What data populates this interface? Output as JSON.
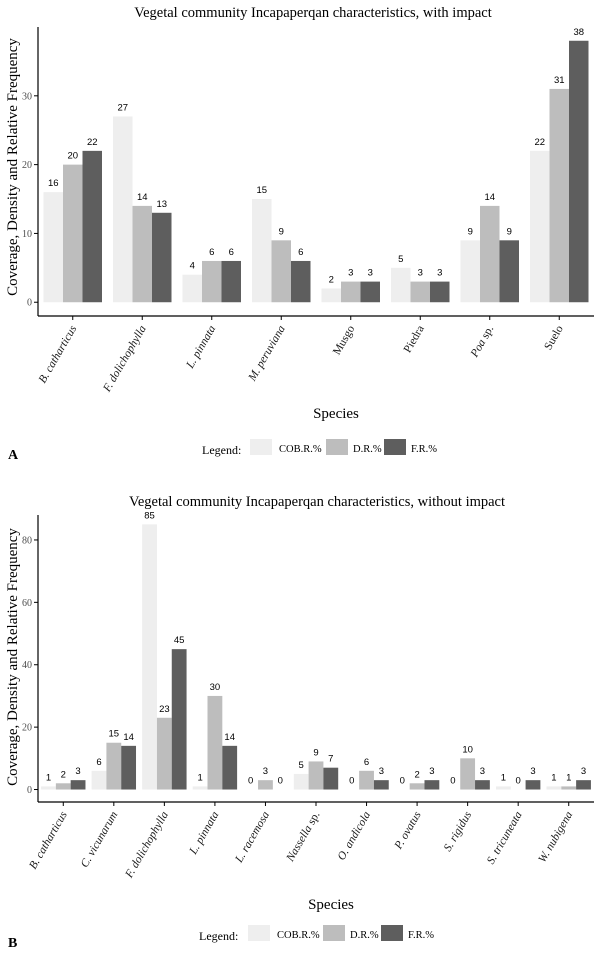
{
  "colors": {
    "cob": "#eeeeee",
    "dr": "#bdbdbd",
    "fr": "#5e5e5e",
    "axis": "#000000"
  },
  "chart_data": [
    {
      "type": "bar",
      "panel": "A",
      "title": "Vegetal community Incapaperqan characteristics, with impact",
      "xlabel": "Species",
      "ylabel": "Coverage, Density and Relative Frequency",
      "ylim": [
        -2,
        40
      ],
      "yticks": [
        0,
        10,
        20,
        30
      ],
      "categories": [
        {
          "name": "B. catharticus",
          "italic": true
        },
        {
          "name": "F. dolichophylla",
          "italic": true
        },
        {
          "name": "L. pinnata",
          "italic": true
        },
        {
          "name": "M. peruviana",
          "italic": true
        },
        {
          "name": "Musgo",
          "italic": false
        },
        {
          "name": "Piedra",
          "italic": false
        },
        {
          "name": "Poa",
          "italic": true,
          "suffix": " sp."
        },
        {
          "name": "Suelo",
          "italic": false
        }
      ],
      "series": [
        {
          "name": "COB.R.%",
          "color_key": "cob",
          "values": [
            16,
            27,
            4,
            15,
            2,
            5,
            9,
            22
          ]
        },
        {
          "name": "D.R.%",
          "color_key": "dr",
          "values": [
            20,
            14,
            6,
            9,
            3,
            3,
            14,
            31
          ]
        },
        {
          "name": "F.R.%",
          "color_key": "fr",
          "values": [
            22,
            13,
            6,
            6,
            3,
            3,
            9,
            38
          ]
        }
      ],
      "legend": {
        "title": "Legend:",
        "position": "bottom"
      }
    },
    {
      "type": "bar",
      "panel": "B",
      "title": "Vegetal community Incapaperqan characteristics, without impact",
      "xlabel": "Species",
      "ylabel": "Coverage, Density and Relative Frequency",
      "ylim": [
        -4,
        88
      ],
      "yticks": [
        0,
        20,
        40,
        60,
        80
      ],
      "categories": [
        {
          "name": "B. catharticus",
          "italic": true
        },
        {
          "name": "C. vicunarum",
          "italic": true
        },
        {
          "name": "F. dolichophylla",
          "italic": true
        },
        {
          "name": "L. pinnata",
          "italic": true
        },
        {
          "name": "L. racemosa",
          "italic": true
        },
        {
          "name": "Nassella",
          "italic": true,
          "suffix": " sp."
        },
        {
          "name": "O. andicola",
          "italic": true
        },
        {
          "name": "P. ovatus",
          "italic": true
        },
        {
          "name": "S. rigidus",
          "italic": true
        },
        {
          "name": "S. tricuneata",
          "italic": true
        },
        {
          "name": "W. nubigena",
          "italic": true
        }
      ],
      "series": [
        {
          "name": "COB.R.%",
          "color_key": "cob",
          "values": [
            1,
            6,
            85,
            1,
            0,
            5,
            0,
            0,
            0,
            1,
            1
          ]
        },
        {
          "name": "D.R.%",
          "color_key": "dr",
          "values": [
            2,
            15,
            23,
            30,
            3,
            9,
            6,
            2,
            10,
            0,
            1
          ]
        },
        {
          "name": "F.R.%",
          "color_key": "fr",
          "values": [
            3,
            14,
            45,
            14,
            0,
            7,
            3,
            3,
            3,
            3,
            3
          ]
        }
      ],
      "legend": {
        "title": "Legend:",
        "position": "bottom"
      }
    }
  ]
}
